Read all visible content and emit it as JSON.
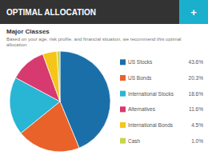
{
  "chart_data": {
    "type": "pie",
    "title": "OPTIMAL ALLOCATION",
    "subtitle": "Major Classes",
    "description": "Based on your age, risk profile, and financial situation, we recommend this optimal allocation",
    "annotations": [
      "+"
    ],
    "categories": [
      "US Stocks",
      "US Bonds",
      "International Stocks",
      "Alternatives",
      "International Bonds",
      "Cash"
    ],
    "values": [
      43.6,
      20.3,
      18.6,
      11.6,
      4.5,
      1.0
    ],
    "value_labels": [
      "43.6%",
      "20.3%",
      "18.6%",
      "11.6%",
      "4.5%",
      "1.0%"
    ],
    "colors": [
      "#1a6fa8",
      "#e8622a",
      "#29b6d4",
      "#d63a6e",
      "#f5c518",
      "#c8d44e"
    ]
  }
}
